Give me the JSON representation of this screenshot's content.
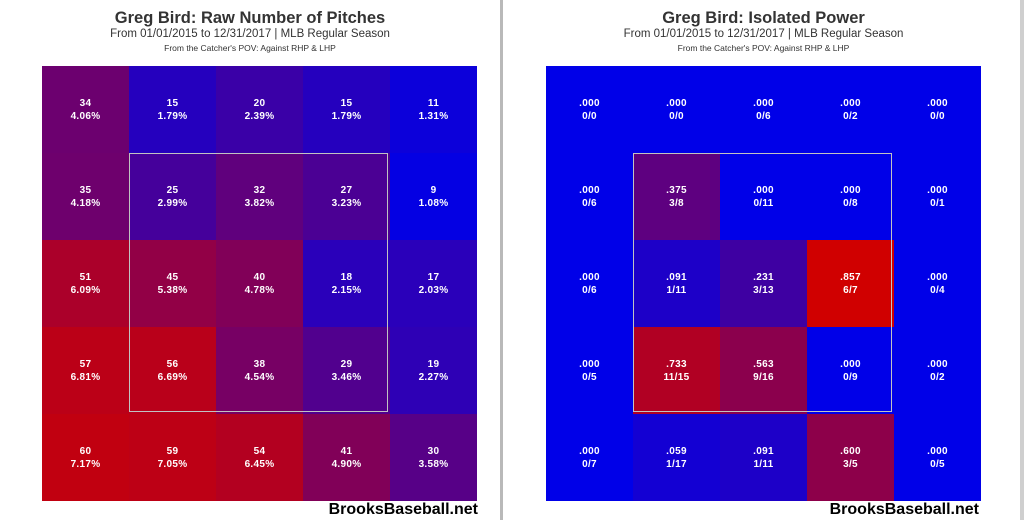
{
  "chart_data": [
    {
      "type": "heatmap",
      "title": "Greg Bird: Raw Number of Pitches",
      "subtitle": "From 01/01/2015 to 12/31/2017 | MLB Regular Season",
      "pov": "From the Catcher's POV:   Against RHP & LHP",
      "watermark": "BrooksBaseball.net",
      "cells": [
        [
          {
            "top": "34",
            "bottom": "4.06%",
            "intensity": 0.52
          },
          {
            "top": "15",
            "bottom": "1.79%",
            "intensity": 0.18
          },
          {
            "top": "20",
            "bottom": "2.39%",
            "intensity": 0.28
          },
          {
            "top": "15",
            "bottom": "1.79%",
            "intensity": 0.18
          },
          {
            "top": "11",
            "bottom": "1.31%",
            "intensity": 0.06
          }
        ],
        [
          {
            "top": "35",
            "bottom": "4.18%",
            "intensity": 0.53
          },
          {
            "top": "25",
            "bottom": "2.99%",
            "intensity": 0.33
          },
          {
            "top": "32",
            "bottom": "3.82%",
            "intensity": 0.46
          },
          {
            "top": "27",
            "bottom": "3.23%",
            "intensity": 0.36
          },
          {
            "top": "9",
            "bottom": "1.08%",
            "intensity": 0.02
          }
        ],
        [
          {
            "top": "51",
            "bottom": "6.09%",
            "intensity": 0.82
          },
          {
            "top": "45",
            "bottom": "5.38%",
            "intensity": 0.7
          },
          {
            "top": "40",
            "bottom": "4.78%",
            "intensity": 0.62
          },
          {
            "top": "18",
            "bottom": "2.15%",
            "intensity": 0.2
          },
          {
            "top": "17",
            "bottom": "2.03%",
            "intensity": 0.2
          }
        ],
        [
          {
            "top": "57",
            "bottom": "6.81%",
            "intensity": 0.9
          },
          {
            "top": "56",
            "bottom": "6.69%",
            "intensity": 0.89
          },
          {
            "top": "38",
            "bottom": "4.54%",
            "intensity": 0.57
          },
          {
            "top": "29",
            "bottom": "3.46%",
            "intensity": 0.39
          },
          {
            "top": "19",
            "bottom": "2.27%",
            "intensity": 0.22
          }
        ],
        [
          {
            "top": "60",
            "bottom": "7.17%",
            "intensity": 0.93
          },
          {
            "top": "59",
            "bottom": "7.05%",
            "intensity": 0.91
          },
          {
            "top": "54",
            "bottom": "6.45%",
            "intensity": 0.86
          },
          {
            "top": "41",
            "bottom": "4.90%",
            "intensity": 0.62
          },
          {
            "top": "30",
            "bottom": "3.58%",
            "intensity": 0.42
          }
        ]
      ]
    },
    {
      "type": "heatmap",
      "title": "Greg Bird: Isolated Power",
      "subtitle": "From 01/01/2015 to 12/31/2017 | MLB Regular Season",
      "pov": "From the Catcher's POV:   Against RHP & LHP",
      "watermark": "BrooksBaseball.net",
      "cells": [
        [
          {
            "top": ".000",
            "bottom": "0/0",
            "intensity": 0
          },
          {
            "top": ".000",
            "bottom": "0/0",
            "intensity": 0
          },
          {
            "top": ".000",
            "bottom": "0/6",
            "intensity": 0
          },
          {
            "top": ".000",
            "bottom": "0/2",
            "intensity": 0
          },
          {
            "top": ".000",
            "bottom": "0/0",
            "intensity": 0
          }
        ],
        [
          {
            "top": ".000",
            "bottom": "0/6",
            "intensity": 0
          },
          {
            "top": ".375",
            "bottom": "3/8",
            "intensity": 0.45
          },
          {
            "top": ".000",
            "bottom": "0/11",
            "intensity": 0
          },
          {
            "top": ".000",
            "bottom": "0/8",
            "intensity": 0
          },
          {
            "top": ".000",
            "bottom": "0/1",
            "intensity": 0
          }
        ],
        [
          {
            "top": ".000",
            "bottom": "0/6",
            "intensity": 0
          },
          {
            "top": ".091",
            "bottom": "1/11",
            "intensity": 0.14
          },
          {
            "top": ".231",
            "bottom": "3/13",
            "intensity": 0.3
          },
          {
            "top": ".857",
            "bottom": "6/7",
            "intensity": 1
          },
          {
            "top": ".000",
            "bottom": "0/4",
            "intensity": 0
          }
        ],
        [
          {
            "top": ".000",
            "bottom": "0/5",
            "intensity": 0
          },
          {
            "top": ".733",
            "bottom": "11/15",
            "intensity": 0.85
          },
          {
            "top": ".563",
            "bottom": "9/16",
            "intensity": 0.67
          },
          {
            "top": ".000",
            "bottom": "0/9",
            "intensity": 0
          },
          {
            "top": ".000",
            "bottom": "0/2",
            "intensity": 0
          }
        ],
        [
          {
            "top": ".000",
            "bottom": "0/7",
            "intensity": 0
          },
          {
            "top": ".059",
            "bottom": "1/17",
            "intensity": 0.09
          },
          {
            "top": ".091",
            "bottom": "1/11",
            "intensity": 0.14
          },
          {
            "top": ".600",
            "bottom": "3/5",
            "intensity": 0.68
          },
          {
            "top": ".000",
            "bottom": "0/5",
            "intensity": 0
          }
        ]
      ]
    }
  ],
  "colors": {
    "low": "#0000e8",
    "high": "#d00000"
  }
}
